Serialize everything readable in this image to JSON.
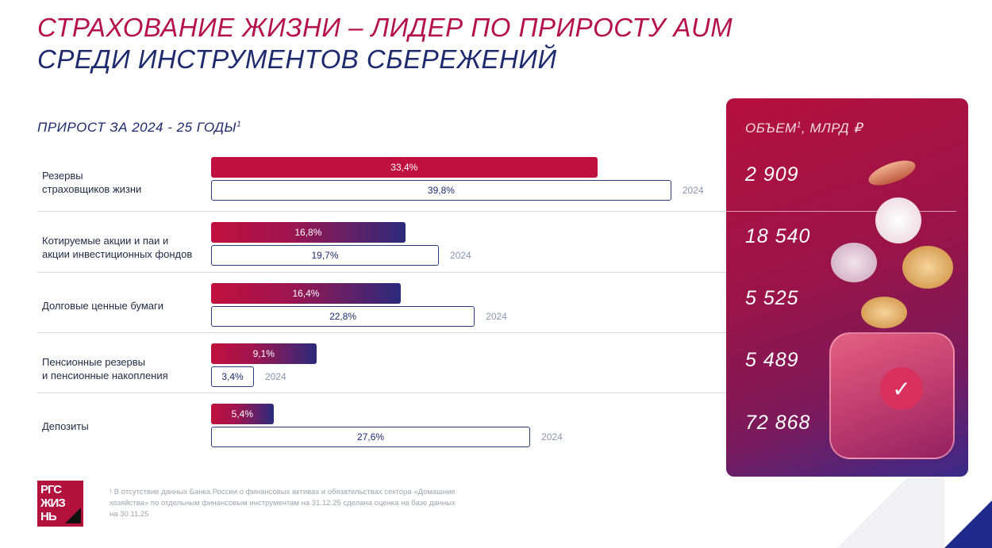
{
  "title_line1": "СТРАХОВАНИЕ ЖИЗНИ – ЛИДЕР ПО ПРИРОСТУ AUM",
  "title_line2": "СРЕДИ ИНСТРУМЕНТОВ СБЕРЕЖЕНИЙ",
  "subtitle": "ПРИРОСТ ЗА 2024 - 25 ГОДЫ",
  "subtitle_sup": "1",
  "chart_data": {
    "type": "bar",
    "orientation": "horizontal",
    "title": "ПРИРОСТ ЗА 2024 - 25 ГОДЫ",
    "categories": [
      "Резервы страховщиков жизни",
      "Котируемые акции и паи и акции инвестиционных фондов",
      "Долговые ценные бумаги",
      "Пенсионные резервы и пенсионные накопления",
      "Депозиты"
    ],
    "category_lines": [
      [
        "Резервы",
        "страховщиков жизни"
      ],
      [
        "Котируемые акции и паи и",
        "акции инвестиционных фондов"
      ],
      [
        "Долговые ценные бумаги"
      ],
      [
        "Пенсионные резервы",
        "и пенсионные накопления"
      ],
      [
        "Депозиты"
      ]
    ],
    "series": [
      {
        "name": "2025",
        "values": [
          33.4,
          16.8,
          16.4,
          9.1,
          5.4
        ],
        "labels": [
          "33,4%",
          "16,8%",
          "16,4%",
          "9,1%",
          "5,4%"
        ]
      },
      {
        "name": "2024",
        "values": [
          39.8,
          19.7,
          22.8,
          3.4,
          27.6
        ],
        "labels": [
          "39,8%",
          "19,7%",
          "22,8%",
          "3,4%",
          "27,6%"
        ]
      }
    ],
    "year_label": "2024",
    "unit": "%"
  },
  "panel": {
    "header": "ОБЪЕМ",
    "header_sup": "1",
    "header_unit": ", МЛРД ₽",
    "values": [
      "2 909",
      "18 540",
      "5 525",
      "5 489",
      "72 868"
    ]
  },
  "logo_text": [
    "РГС",
    "ЖИЗ",
    "НЬ"
  ],
  "footnote": "¹ В отсутствие данных Банка России о финансовых активах и обязательствах сектора «Домашние хозяйства» по отдельным финансовым инструментам на 31.12.25 сделана оценка на базе данных на 30.11.25",
  "colors": {
    "accent": "#b5124b",
    "navy": "#1d2a6e"
  }
}
